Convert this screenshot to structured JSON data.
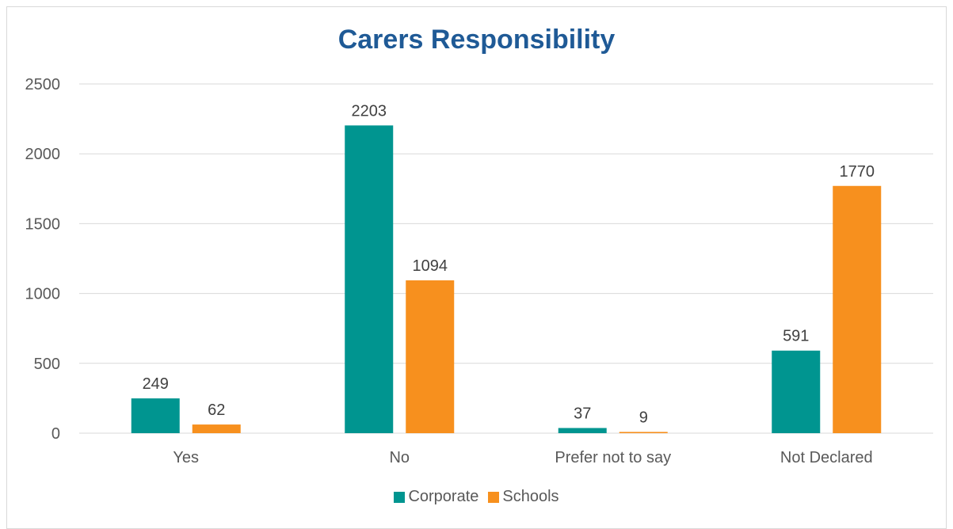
{
  "colors": {
    "corporate": "#009590",
    "schools": "#f7901e",
    "title": "#1f5a96"
  },
  "chart_data": {
    "type": "bar",
    "title": "Carers Responsibility",
    "xlabel": "",
    "ylabel": "",
    "categories": [
      "Yes",
      "No",
      "Prefer not to say",
      "Not Declared"
    ],
    "series": [
      {
        "name": "Corporate",
        "values": [
          249,
          2203,
          37,
          591
        ]
      },
      {
        "name": "Schools",
        "values": [
          62,
          1094,
          9,
          1770
        ]
      }
    ],
    "ylim": [
      0,
      2500
    ],
    "yticks": [
      0,
      500,
      1000,
      1500,
      2000,
      2500
    ],
    "grid": true,
    "legend": "bottom",
    "data_labels": true
  }
}
